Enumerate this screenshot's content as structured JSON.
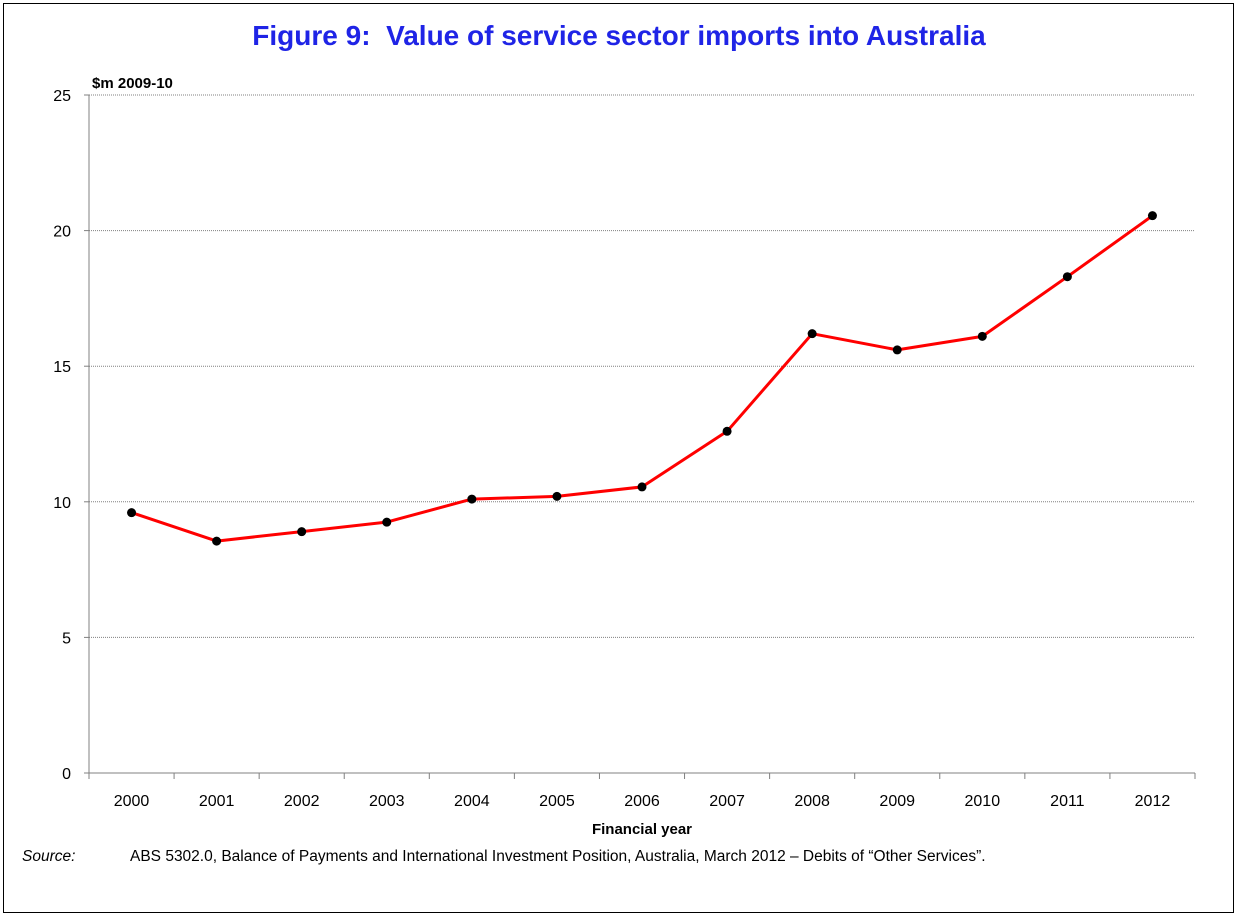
{
  "chart_data": {
    "type": "line",
    "title": "Figure 9:  Value of service sector imports into Australia",
    "ylabel": "$m 2009-10",
    "xlabel": "Financial year",
    "categories": [
      "2000",
      "2001",
      "2002",
      "2003",
      "2004",
      "2005",
      "2006",
      "2007",
      "2008",
      "2009",
      "2010",
      "2011",
      "2012"
    ],
    "series": [
      {
        "values": [
          9.6,
          8.55,
          8.9,
          9.25,
          10.1,
          10.2,
          10.55,
          12.6,
          16.2,
          15.6,
          16.1,
          18.3,
          20.55
        ]
      }
    ],
    "ylim": [
      0,
      25
    ],
    "yticks": [
      0,
      5,
      10,
      15,
      20,
      25
    ],
    "grid": true,
    "colors": {
      "line": "#ff0000",
      "marker": "#000000",
      "title": "#1f24e6",
      "grid": "#808080"
    }
  },
  "source": {
    "label": "Source:",
    "text": "ABS 5302.0, Balance of Payments and International Investment Position, Australia, March 2012 – Debits of “Other Services”."
  }
}
